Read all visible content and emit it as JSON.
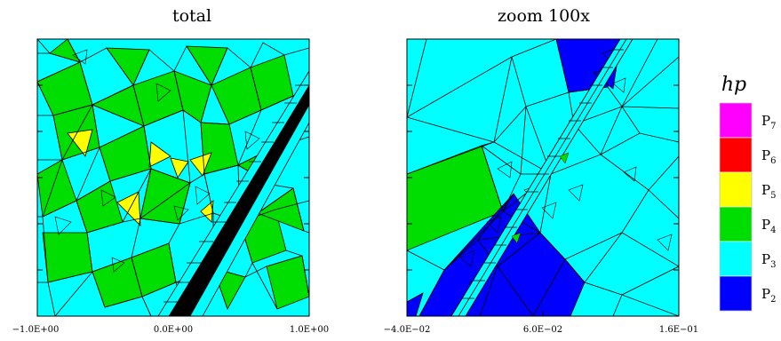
{
  "panels": [
    {
      "title": "total",
      "x_ticks": [
        "−1.0E+00",
        "0.0E+00",
        "1.0E+00"
      ],
      "background_color": "#00ffff"
    },
    {
      "title": "zoom 100x",
      "x_ticks": [
        "−4.0E−02",
        "6.0E−02",
        "1.6E−01"
      ],
      "background_color": "#00ffff"
    }
  ],
  "legend": {
    "title": "hp",
    "items": [
      {
        "label": "P",
        "sub": "7",
        "color": "#ff00ff"
      },
      {
        "label": "P",
        "sub": "6",
        "color": "#ff0000"
      },
      {
        "label": "P",
        "sub": "5",
        "color": "#ffff00"
      },
      {
        "label": "P",
        "sub": "4",
        "color": "#00dd00"
      },
      {
        "label": "P",
        "sub": "3",
        "color": "#00ffff"
      },
      {
        "label": "P",
        "sub": "2",
        "color": "#0000ff"
      }
    ]
  },
  "colors": {
    "mesh_line": "#000000",
    "p2": "#0000ff",
    "p3": "#00ffff",
    "p4": "#00dd00",
    "p5": "#ffff00"
  }
}
